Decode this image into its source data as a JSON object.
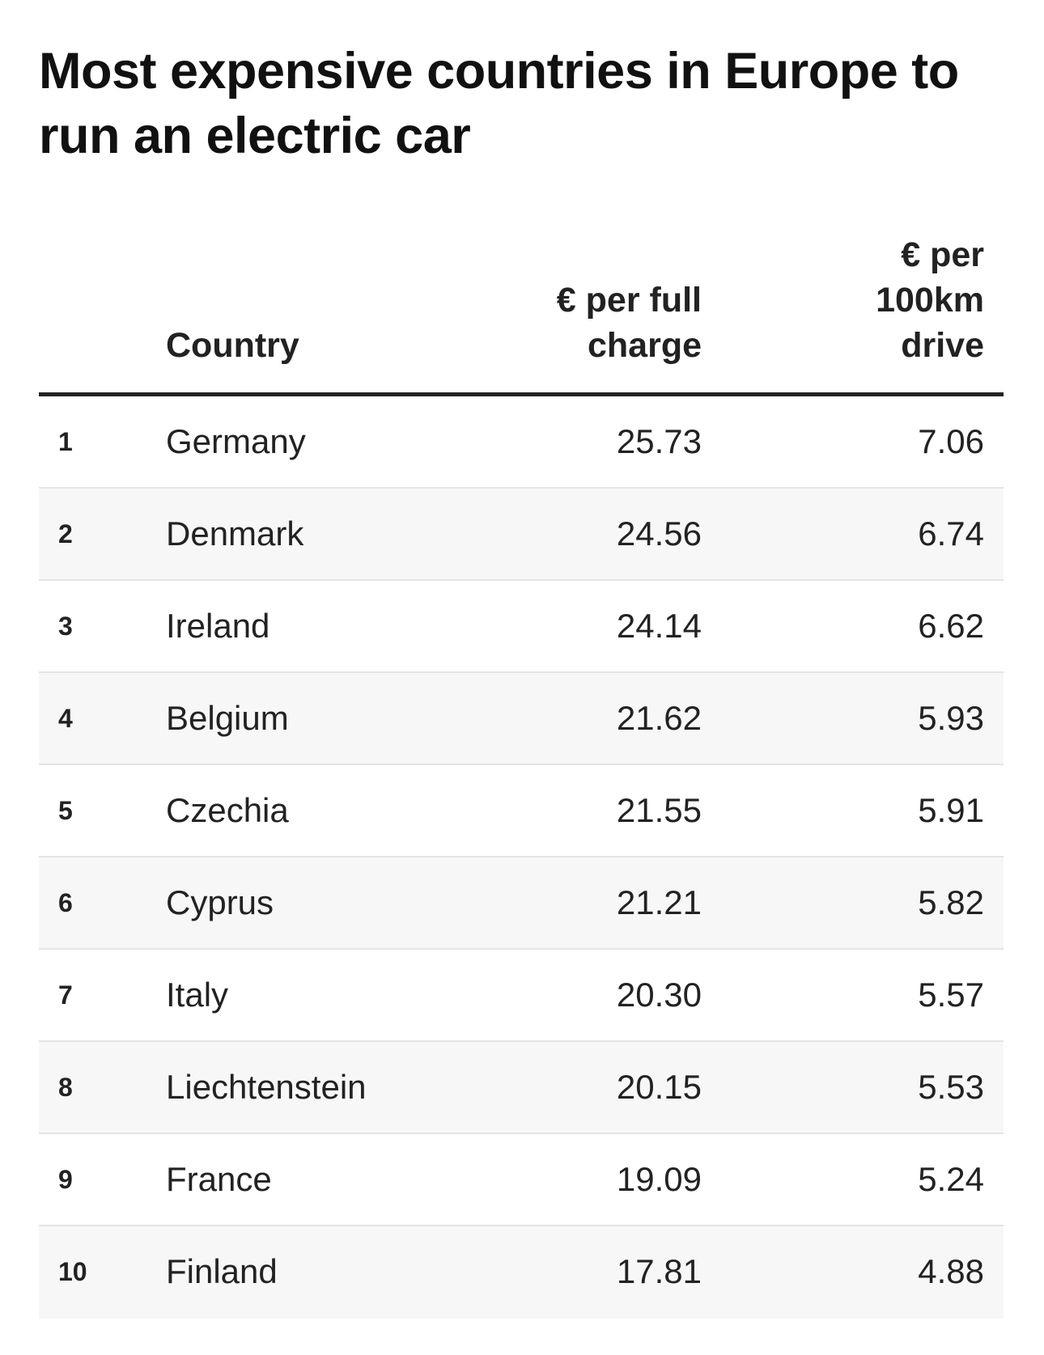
{
  "chart_data": {
    "type": "table",
    "title": "Most expensive countries in Europe to run an electric car",
    "columns": [
      "",
      "Country",
      "€ per full charge",
      "€ per 100km drive"
    ],
    "rows": [
      {
        "rank": "1",
        "country": "Germany",
        "per_full_charge": "25.73",
        "per_100km": "7.06"
      },
      {
        "rank": "2",
        "country": "Denmark",
        "per_full_charge": "24.56",
        "per_100km": "6.74"
      },
      {
        "rank": "3",
        "country": "Ireland",
        "per_full_charge": "24.14",
        "per_100km": "6.62"
      },
      {
        "rank": "4",
        "country": "Belgium",
        "per_full_charge": "21.62",
        "per_100km": "5.93"
      },
      {
        "rank": "5",
        "country": "Czechia",
        "per_full_charge": "21.55",
        "per_100km": "5.91"
      },
      {
        "rank": "6",
        "country": "Cyprus",
        "per_full_charge": "21.21",
        "per_100km": "5.82"
      },
      {
        "rank": "7",
        "country": "Italy",
        "per_full_charge": "20.30",
        "per_100km": "5.57"
      },
      {
        "rank": "8",
        "country": "Liechtenstein",
        "per_full_charge": "20.15",
        "per_100km": "5.53"
      },
      {
        "rank": "9",
        "country": "France",
        "per_full_charge": "19.09",
        "per_100km": "5.24"
      },
      {
        "rank": "10",
        "country": "Finland",
        "per_full_charge": "17.81",
        "per_100km": "4.88"
      }
    ]
  }
}
